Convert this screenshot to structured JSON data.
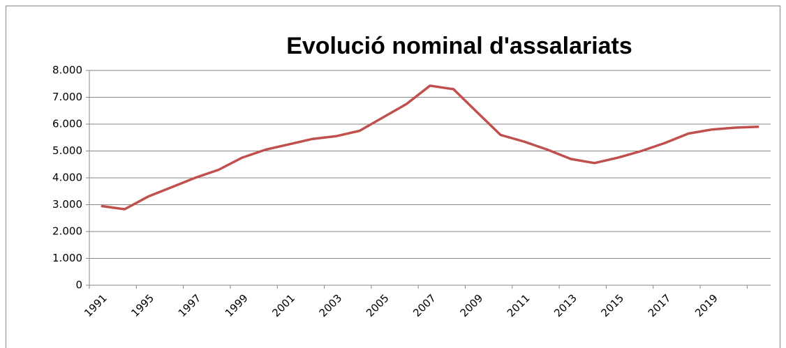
{
  "chart_data": {
    "type": "line",
    "title": "Evolució nominal d'assalariats",
    "categories": [
      "1991",
      null,
      "1995",
      null,
      "1997",
      null,
      "1999",
      null,
      "2001",
      null,
      "2003",
      null,
      "2005",
      null,
      "2007",
      null,
      "2009",
      null,
      "2011",
      null,
      "2013",
      null,
      "2015",
      null,
      "2017",
      null,
      "2019",
      null,
      null
    ],
    "series": [
      {
        "name": "assalariats",
        "color": "#c0504d",
        "values": [
          2950,
          2830,
          3300,
          3650,
          4000,
          4300,
          4750,
          5050,
          5250,
          5450,
          5550,
          5750,
          6250,
          6750,
          7430,
          7300,
          6450,
          5600,
          5350,
          5050,
          4700,
          4550,
          4750,
          5000,
          5300,
          5650,
          5800,
          5870,
          5900
        ]
      }
    ],
    "ylim": [
      0,
      8000
    ],
    "yticks": [
      0,
      {
        "value": 1000,
        "label": "1.000"
      },
      {
        "value": 2000,
        "label": "2.000"
      },
      {
        "value": 3000,
        "label": "3.000"
      },
      {
        "value": 4000,
        "label": "4.000"
      },
      {
        "value": 5000,
        "label": "5.000"
      },
      {
        "value": 6000,
        "label": "6.000"
      },
      {
        "value": 7000,
        "label": "7.000"
      },
      {
        "value": 8000,
        "label": "8.000"
      }
    ],
    "grid": true
  }
}
